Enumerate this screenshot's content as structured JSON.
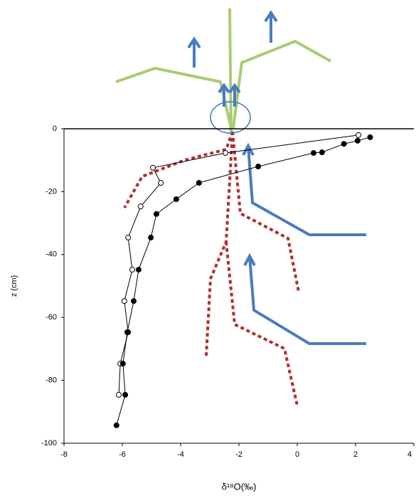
{
  "chart_data": {
    "type": "line",
    "xlabel": "δ¹⁸O(‰)",
    "ylabel": "z (cm)",
    "xlim": [
      -8,
      4
    ],
    "ylim": [
      -100,
      0
    ],
    "xticks": [
      -8,
      -6,
      -4,
      -2,
      0,
      2,
      4
    ],
    "yticks": [
      -100,
      -80,
      -60,
      -40,
      -20,
      0
    ],
    "series": [
      {
        "color": "#000000",
        "marker_fill": "#ffffff",
        "x": [
          2.1,
          -2.46,
          -4.95,
          -4.68,
          -5.37,
          -5.8,
          -5.66,
          -5.93,
          -5.8,
          -6.07,
          -6.12
        ],
        "values": [
          -2,
          -7.7,
          -12.4,
          -17.2,
          -24.7,
          -34.6,
          -44.8,
          -54.8,
          -64.7,
          -74.7,
          -84.6
        ]
      },
      {
        "color": "#000000",
        "marker_fill": "#000000",
        "x": [
          2.5,
          2.07,
          1.6,
          0.85,
          0.56,
          -1.34,
          -3.37,
          -4.15,
          -4.83,
          -5.02,
          -5.44,
          -5.61,
          -5.83,
          -5.98,
          -5.9,
          -6.2
        ],
        "values": [
          -2.7,
          -3.8,
          -4.8,
          -7.5,
          -7.7,
          -12,
          -17.2,
          -22.4,
          -27.1,
          -34.6,
          -44.8,
          -54.8,
          -64.7,
          -74.7,
          -84.6,
          -94.3
        ]
      }
    ]
  }
}
